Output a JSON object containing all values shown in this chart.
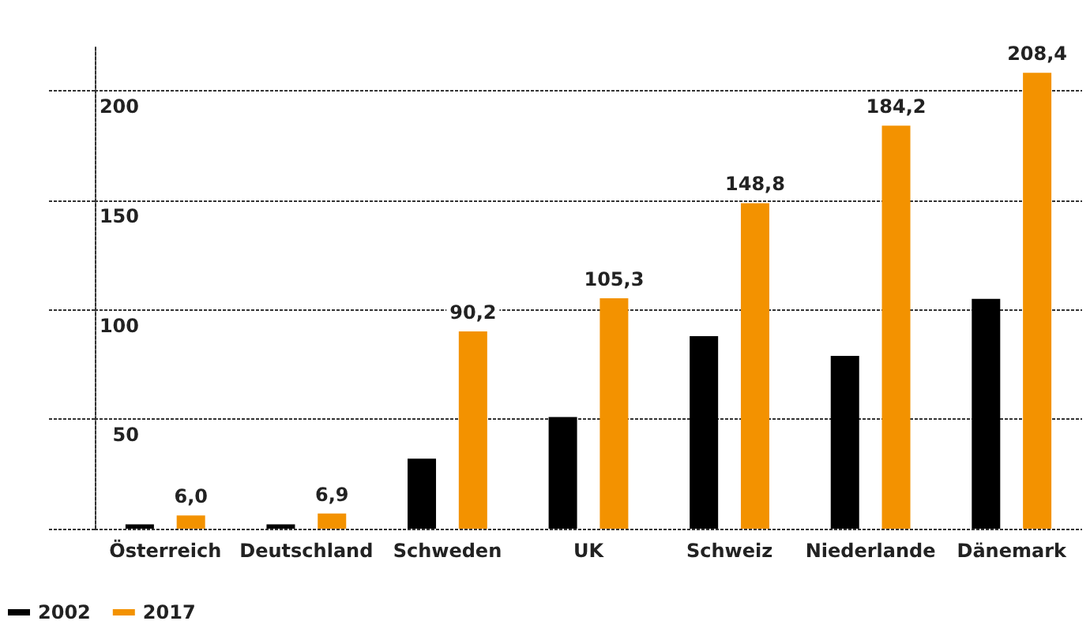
{
  "chart_data": {
    "type": "bar",
    "categories": [
      "Österreich",
      "Deutschland",
      "Schweden",
      "UK",
      "Schweiz",
      "Niederlande",
      "Dänemark"
    ],
    "series": [
      {
        "name": "2002",
        "color": "#000000",
        "values": [
          2,
          2,
          32,
          51,
          88,
          79,
          105
        ]
      },
      {
        "name": "2017",
        "color": "#f39200",
        "values": [
          6.0,
          6.9,
          90.2,
          105.3,
          148.8,
          184.2,
          208.4
        ],
        "value_labels": [
          "6,0",
          "6,9",
          "90,2",
          "105,3",
          "148,8",
          "184,2",
          "208,4"
        ]
      }
    ],
    "ylim": [
      0,
      220
    ],
    "yticks": [
      {
        "value": 0,
        "label": null
      },
      50,
      100,
      150,
      200
    ],
    "grid": "y",
    "legend": "bottom left"
  }
}
